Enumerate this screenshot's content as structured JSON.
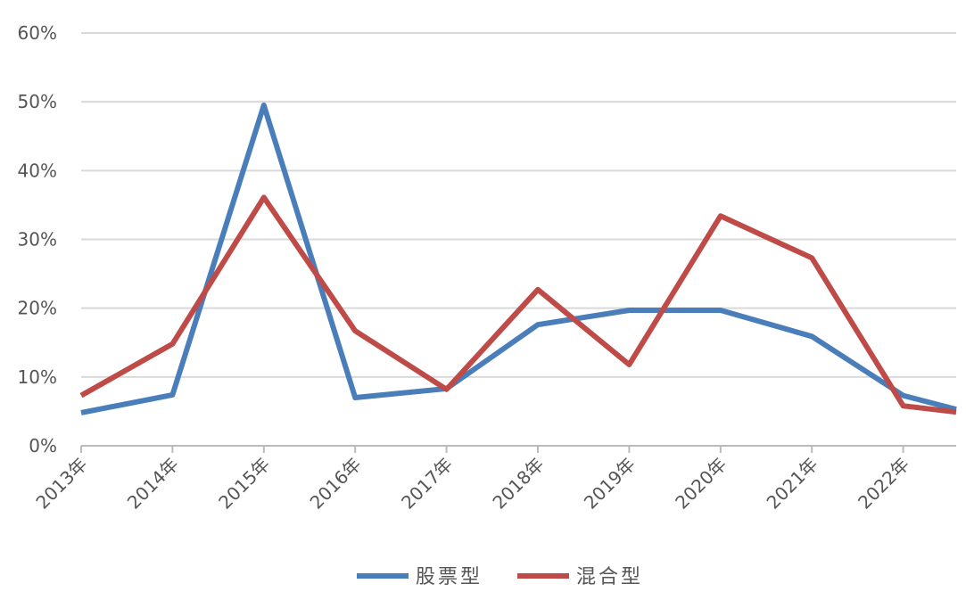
{
  "chart_data": {
    "type": "line",
    "categories": [
      "2013年",
      "2014年",
      "2015年",
      "2016年",
      "2017年",
      "2018年",
      "2019年",
      "2020年",
      "2021年",
      "2022年",
      null
    ],
    "series": [
      {
        "name": "股票型",
        "color": "#4a7ebb",
        "values": [
          4.8,
          7.4,
          49.5,
          7.0,
          8.3,
          17.6,
          19.7,
          19.7,
          15.9,
          7.3,
          5.3
        ]
      },
      {
        "name": "混合型",
        "color": "#be4b48",
        "values": [
          7.3,
          14.8,
          36.1,
          16.7,
          8.2,
          22.7,
          11.8,
          33.4,
          27.3,
          5.8,
          4.9
        ]
      }
    ],
    "ylim": [
      0,
      60
    ],
    "yticks": [
      {
        "value": 0,
        "label": "0%"
      },
      {
        "value": 10,
        "label": "10%"
      },
      {
        "value": 20,
        "label": "20%"
      },
      {
        "value": 30,
        "label": "30%"
      },
      {
        "value": 40,
        "label": "40%"
      },
      {
        "value": 50,
        "label": "50%"
      },
      {
        "value": 60,
        "label": "60%"
      }
    ],
    "grid": true,
    "legend": "bottom"
  }
}
